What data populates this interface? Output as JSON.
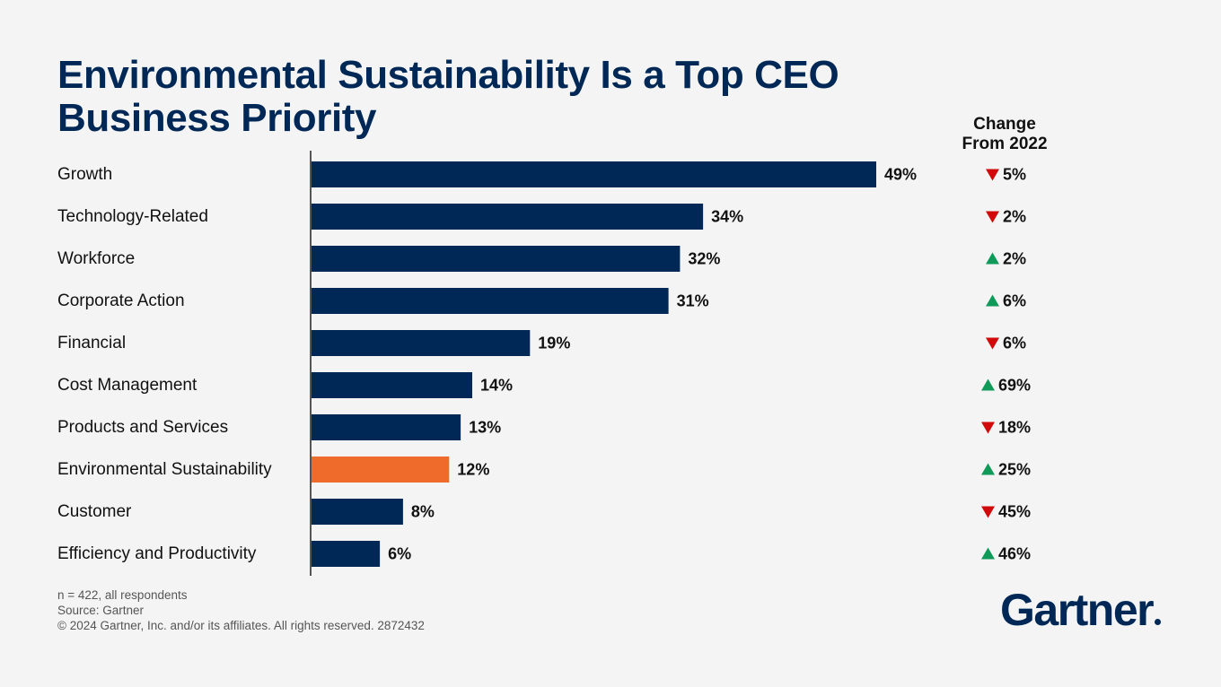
{
  "page": {
    "title": "Environmental Sustainability Is a Top CEO Business Priority",
    "change_header_line1": "Change",
    "change_header_line2": "From 2022"
  },
  "colors": {
    "bar": "#002856",
    "highlight": "#ee6b2b",
    "up": "#0f9a5a",
    "down": "#d2090a",
    "axis": "#555555"
  },
  "chart_data": {
    "type": "bar",
    "orientation": "horizontal",
    "categories": [
      "Growth",
      "Technology-Related",
      "Workforce",
      "Corporate Action",
      "Financial",
      "Cost Management",
      "Products and Services",
      "Environmental Sustainability",
      "Customer",
      "Efficiency and Productivity"
    ],
    "values": [
      49,
      34,
      32,
      31,
      19,
      14,
      13,
      12,
      8,
      6
    ],
    "value_labels": [
      "49%",
      "34%",
      "32%",
      "31%",
      "19%",
      "14%",
      "13%",
      "12%",
      "8%",
      "6%"
    ],
    "highlight_category": "Environmental Sustainability",
    "unit": "%",
    "xlim": [
      0,
      49
    ],
    "grid": false,
    "legend": "none",
    "change_from_2022": {
      "header": "Change From 2022",
      "directions": [
        "down",
        "down",
        "up",
        "up",
        "down",
        "up",
        "down",
        "up",
        "down",
        "up"
      ],
      "values": [
        5,
        2,
        2,
        6,
        6,
        69,
        18,
        25,
        45,
        46
      ],
      "labels": [
        "5%",
        "2%",
        "2%",
        "6%",
        "6%",
        "69%",
        "18%",
        "25%",
        "45%",
        "46%"
      ]
    }
  },
  "footnotes": [
    "n = 422, all respondents",
    "Source: Gartner",
    "© 2024 Gartner, Inc. and/or its affiliates. All rights reserved. 2872432"
  ],
  "logo": {
    "text": "Gartner"
  }
}
